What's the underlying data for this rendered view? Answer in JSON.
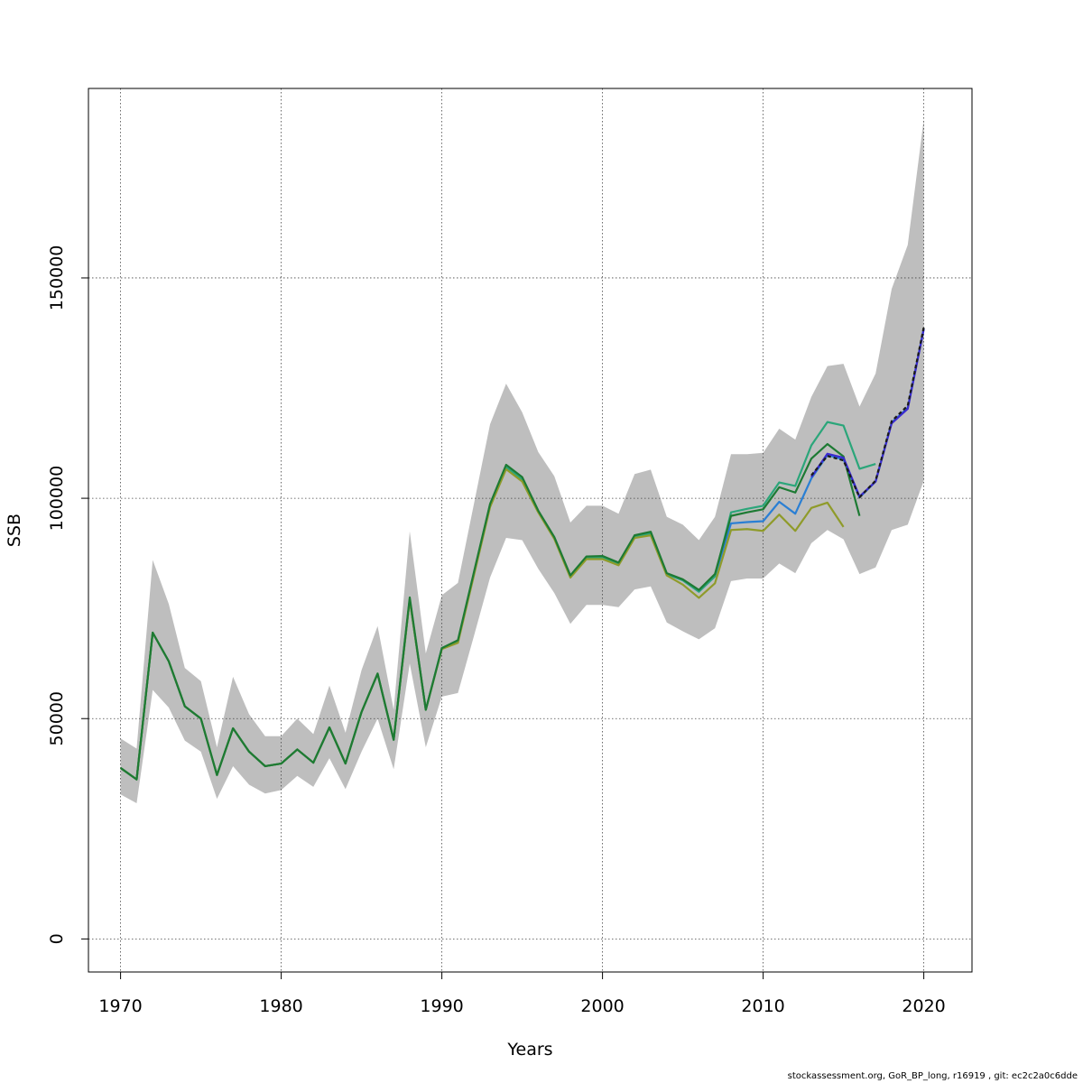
{
  "chart_data": {
    "type": "line",
    "xlabel": "Years",
    "ylabel": "SSB",
    "xlim": [
      1968,
      2023
    ],
    "ylim": [
      -7500,
      193000
    ],
    "x_ticks": [
      1970,
      1980,
      1990,
      2000,
      2010,
      2020
    ],
    "y_ticks": [
      0,
      50000,
      100000,
      150000
    ],
    "x_tick_labels": [
      "1970",
      "1980",
      "1990",
      "2000",
      "2010",
      "2020"
    ],
    "y_tick_labels": [
      "0",
      "50000",
      "100000",
      "150000"
    ],
    "grid": true,
    "band_color": "#bebebe",
    "confidence_band": {
      "x": [
        1970,
        1971,
        1972,
        1973,
        1974,
        1975,
        1976,
        1977,
        1978,
        1979,
        1980,
        1981,
        1982,
        1983,
        1984,
        1985,
        1986,
        1987,
        1988,
        1989,
        1990,
        1991,
        1992,
        1993,
        1994,
        1995,
        1996,
        1997,
        1998,
        1999,
        2000,
        2001,
        2002,
        2003,
        2004,
        2005,
        2006,
        2007,
        2008,
        2009,
        2010,
        2011,
        2012,
        2013,
        2014,
        2015,
        2016,
        2017,
        2018,
        2019,
        2020
      ],
      "lower": [
        32800,
        30800,
        56500,
        52500,
        45000,
        42500,
        31800,
        39200,
        35000,
        33000,
        33800,
        37000,
        34500,
        41000,
        34000,
        42500,
        50000,
        38500,
        62500,
        43500,
        55000,
        55800,
        68800,
        82000,
        91000,
        90500,
        84000,
        78500,
        71500,
        75800,
        75800,
        75300,
        79300,
        80000,
        71800,
        69800,
        68000,
        70500,
        81200,
        81800,
        81800,
        85200,
        83000,
        89800,
        92800,
        90700,
        82800,
        84300,
        92800,
        94000,
        104000
      ],
      "upper": [
        45500,
        43200,
        86000,
        76000,
        61500,
        58500,
        43500,
        59500,
        51000,
        46000,
        46000,
        50000,
        46500,
        57500,
        46800,
        61000,
        71000,
        52000,
        92500,
        64800,
        78000,
        80800,
        98800,
        116800,
        126000,
        119500,
        110500,
        105000,
        94500,
        98300,
        98300,
        96500,
        105500,
        106500,
        95800,
        94000,
        90500,
        95800,
        110000,
        110000,
        110300,
        115800,
        113300,
        123000,
        130000,
        130500,
        120800,
        128300,
        147500,
        157500,
        186000
      ]
    },
    "series": [
      {
        "color": "#2a7fd4",
        "x": [
          1970,
          1971,
          1972,
          1973,
          1974,
          1975,
          1976,
          1977,
          1978,
          1979,
          1980,
          1981,
          1982,
          1983,
          1984,
          1985,
          1986,
          1987,
          1988,
          1989,
          1990,
          1991,
          1992,
          1993,
          1994,
          1995,
          1996,
          1997,
          1998,
          1999,
          2000,
          2001,
          2002,
          2003,
          2004,
          2005,
          2006,
          2007,
          2008,
          2009,
          2010,
          2011,
          2012,
          2013,
          2014,
          2015,
          2016,
          2017,
          2018,
          2019,
          2020
        ],
        "values": [
          38800,
          36200,
          69500,
          63000,
          52800,
          50000,
          37200,
          47800,
          42500,
          39200,
          39800,
          43000,
          40000,
          48000,
          39800,
          51500,
          60200,
          45200,
          77000,
          52000,
          66000,
          67500,
          83000,
          98500,
          107000,
          104200,
          97000,
          91000,
          82300,
          86500,
          86500,
          85200,
          91400,
          92000,
          82800,
          81400,
          78800,
          82300,
          94300,
          94600,
          94800,
          99200,
          96500,
          104500,
          109800,
          108800,
          100200,
          103800,
          117200,
          120500,
          138500
        ]
      },
      {
        "color": "#2ba67a",
        "x": [
          1970,
          1971,
          1972,
          1973,
          1974,
          1975,
          1976,
          1977,
          1978,
          1979,
          1980,
          1981,
          1982,
          1983,
          1984,
          1985,
          1986,
          1987,
          1988,
          1989,
          1990,
          1991,
          1992,
          1993,
          1994,
          1995,
          1996,
          1997,
          1998,
          1999,
          2000,
          2001,
          2002,
          2003,
          2004,
          2005,
          2006,
          2007,
          2008,
          2009,
          2010,
          2011,
          2012,
          2013,
          2014,
          2015,
          2016,
          2017
        ],
        "values": [
          38800,
          36200,
          69500,
          63000,
          52800,
          50000,
          37200,
          47800,
          42500,
          39200,
          39800,
          43000,
          40000,
          48000,
          39800,
          51500,
          60200,
          45200,
          77000,
          52000,
          66000,
          67500,
          83000,
          98500,
          107200,
          104200,
          97000,
          91000,
          82300,
          86500,
          86500,
          85200,
          91400,
          92000,
          82800,
          81400,
          78800,
          82300,
          96800,
          97600,
          98300,
          103600,
          102800,
          112000,
          117300,
          116500,
          106700,
          107800
        ]
      },
      {
        "color": "#8f9b2a",
        "x": [
          1970,
          1971,
          1972,
          1973,
          1974,
          1975,
          1976,
          1977,
          1978,
          1979,
          1980,
          1981,
          1982,
          1983,
          1984,
          1985,
          1986,
          1987,
          1988,
          1989,
          1990,
          1991,
          1992,
          1993,
          1994,
          1995,
          1996,
          1997,
          1998,
          1999,
          2000,
          2001,
          2002,
          2003,
          2004,
          2005,
          2006,
          2007,
          2008,
          2009,
          2010,
          2011,
          2012,
          2013,
          2014,
          2015
        ],
        "values": [
          38800,
          36200,
          69500,
          63000,
          52800,
          50000,
          37200,
          47800,
          42500,
          39200,
          39800,
          43000,
          40000,
          48000,
          39800,
          51500,
          60200,
          45200,
          77000,
          52000,
          65800,
          67200,
          82600,
          98000,
          106600,
          103800,
          96800,
          90800,
          82000,
          86200,
          86200,
          84800,
          91000,
          91600,
          82500,
          80400,
          77400,
          80700,
          92800,
          93000,
          92600,
          96300,
          92600,
          97800,
          99000,
          93500
        ]
      },
      {
        "color": "#1d7a33",
        "x": [
          1970,
          1971,
          1972,
          1973,
          1974,
          1975,
          1976,
          1977,
          1978,
          1979,
          1980,
          1981,
          1982,
          1983,
          1984,
          1985,
          1986,
          1987,
          1988,
          1989,
          1990,
          1991,
          1992,
          1993,
          1994,
          1995,
          1996,
          1997,
          1998,
          1999,
          2000,
          2001,
          2002,
          2003,
          2004,
          2005,
          2006,
          2007,
          2008,
          2009,
          2010,
          2011,
          2012,
          2013,
          2014,
          2015,
          2016
        ],
        "values": [
          38800,
          36200,
          69500,
          63000,
          52800,
          50000,
          37200,
          47800,
          42500,
          39200,
          39800,
          43000,
          40000,
          48000,
          39800,
          51500,
          60200,
          45200,
          77500,
          52000,
          66000,
          67800,
          83300,
          98700,
          107600,
          104800,
          97200,
          91200,
          82500,
          86800,
          86900,
          85400,
          91600,
          92400,
          83000,
          81600,
          79200,
          82800,
          96000,
          96800,
          97500,
          102500,
          101300,
          109000,
          112300,
          109500,
          96000
        ]
      },
      {
        "color": "#3a2ad0",
        "x": [
          2013,
          2014,
          2015,
          2016,
          2017,
          2018,
          2019,
          2020
        ],
        "values": [
          104800,
          110100,
          109200,
          100400,
          103800,
          117000,
          120300,
          138400
        ]
      },
      {
        "color": "#1a1a1a",
        "dash": "4 3",
        "x": [
          2013,
          2014,
          2015,
          2016,
          2017,
          2018,
          2019,
          2020
        ],
        "values": [
          105200,
          109600,
          108600,
          100200,
          104000,
          117500,
          121000,
          138800
        ]
      }
    ]
  },
  "footer": "stockassessment.org, GoR_BP_long, r16919 , git: ec2c2a0c6dde"
}
